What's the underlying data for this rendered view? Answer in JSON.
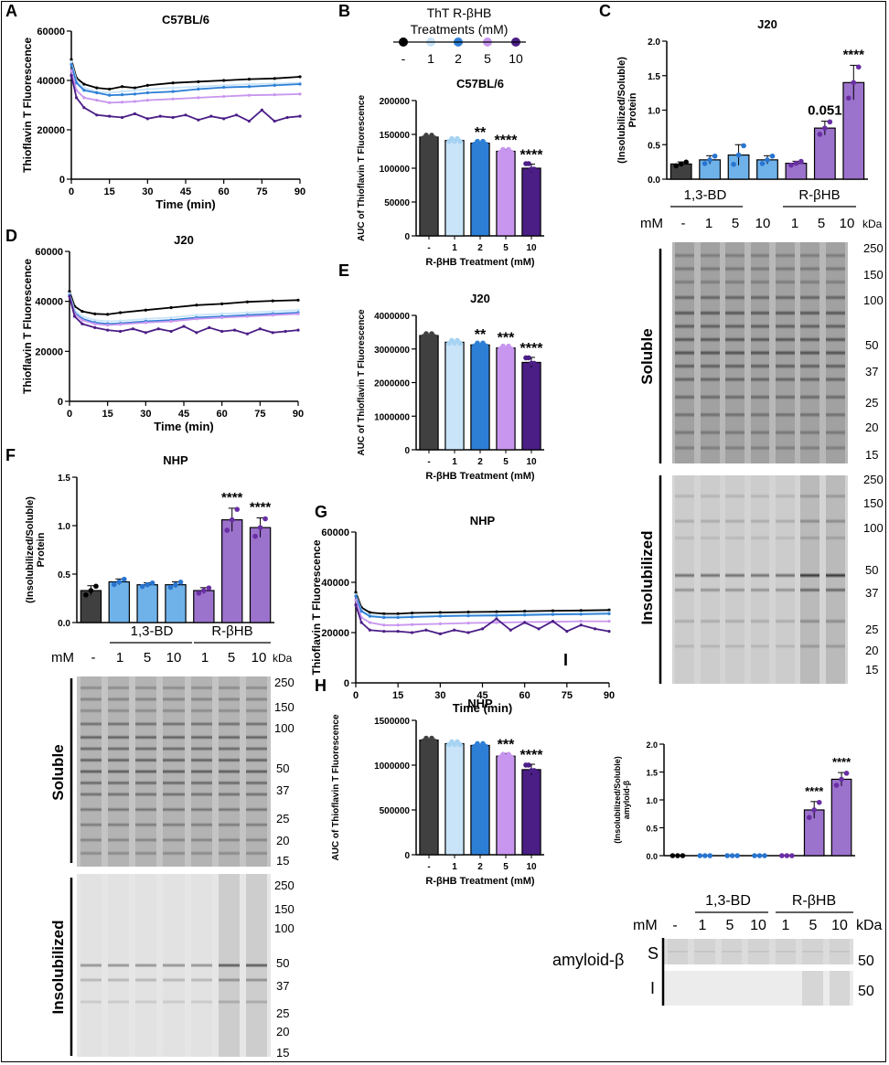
{
  "colors": {
    "ctrl": "#404040",
    "bd": "#6fb2ea",
    "r1": "#c9e4f8",
    "r2": "#2d7fd6",
    "r5": "#c896ee",
    "r10": "#4b1e86",
    "rhb_bar": "#9b72cc",
    "bd_dot": "#2874d0",
    "rhb_dot": "#6a2ea4"
  },
  "panels": [
    "A",
    "B",
    "C",
    "D",
    "E",
    "F",
    "G",
    "H",
    "I"
  ],
  "legend": {
    "title_line1": "ThT R-βHB",
    "title_line2": "Treatments (mM)",
    "labels": [
      "-",
      "1",
      "2",
      "5",
      "10"
    ]
  },
  "gel_common": {
    "mM": "mM",
    "kda": "kDa",
    "lanes": [
      "-",
      "1",
      "5",
      "10",
      "1",
      "5",
      "10"
    ],
    "group_bd": "1,3-BD",
    "group_rhb": "R-βHB",
    "soluble": "Soluble",
    "insolubilized": "Insolubilized",
    "markers_sol": [
      "250",
      "150",
      "100",
      "50",
      "37",
      "25",
      "20",
      "15"
    ],
    "markers_insol": [
      "250",
      "150",
      "100",
      "50",
      "37",
      "25",
      "20",
      "15"
    ]
  },
  "panel_I_blot": {
    "protein": "amyloid-β",
    "S": "S",
    "I": "I",
    "marker": "50"
  },
  "chart_data": [
    {
      "id": "A",
      "type": "line",
      "title": "C57BL/6",
      "xlabel": "Time (min)",
      "ylabel": "Thioflavin T Fluorescence",
      "xlim": [
        0,
        90
      ],
      "ylim": [
        0,
        60000
      ],
      "xticks": [
        "0",
        "15",
        "30",
        "45",
        "60",
        "75",
        "90"
      ],
      "yticks": [
        "0",
        "20000",
        "40000",
        "60000"
      ],
      "series": [
        {
          "name": "-",
          "x": [
            0,
            2,
            5,
            10,
            15,
            20,
            25,
            30,
            40,
            50,
            60,
            70,
            80,
            90
          ],
          "y": [
            48500,
            41000,
            38500,
            37000,
            36500,
            37500,
            37000,
            38000,
            39000,
            39500,
            40000,
            40500,
            40800,
            41500
          ]
        },
        {
          "name": "1",
          "x": [
            0,
            2,
            5,
            10,
            15,
            20,
            25,
            30,
            40,
            50,
            60,
            70,
            80,
            90
          ],
          "y": [
            47500,
            40000,
            37000,
            35500,
            35000,
            35500,
            36000,
            36500,
            37000,
            37500,
            38000,
            38500,
            38700,
            39000
          ]
        },
        {
          "name": "2",
          "x": [
            0,
            2,
            5,
            10,
            15,
            20,
            25,
            30,
            40,
            50,
            60,
            70,
            80,
            90
          ],
          "y": [
            46500,
            39000,
            36000,
            35000,
            34000,
            34200,
            34500,
            35000,
            35500,
            36500,
            37200,
            37500,
            38000,
            38500
          ]
        },
        {
          "name": "5",
          "x": [
            0,
            2,
            5,
            10,
            15,
            20,
            25,
            30,
            40,
            50,
            60,
            70,
            80,
            90
          ],
          "y": [
            44000,
            36000,
            33000,
            32000,
            31000,
            31200,
            31500,
            32000,
            32500,
            33000,
            33500,
            34000,
            34200,
            34500
          ]
        },
        {
          "name": "10",
          "x": [
            0,
            2,
            5,
            10,
            15,
            20,
            25,
            30,
            35,
            40,
            45,
            50,
            55,
            60,
            65,
            70,
            75,
            80,
            85,
            90
          ],
          "y": [
            42000,
            33000,
            29000,
            26000,
            25500,
            25000,
            26500,
            24500,
            25500,
            25000,
            26000,
            24000,
            25500,
            24500,
            26000,
            23500,
            28000,
            23500,
            25000,
            25500
          ]
        }
      ]
    },
    {
      "id": "B",
      "type": "bar",
      "title": "C57BL/6",
      "xlabel": "R-βHB Treatment (mM)",
      "ylabel": "AUC of Thioflavin T Fluorescence",
      "categories": [
        "-",
        "1",
        "2",
        "5",
        "10"
      ],
      "values": [
        146000,
        141000,
        137000,
        125000,
        100000
      ],
      "errors": [
        2000,
        1500,
        2000,
        2500,
        6000
      ],
      "significance": [
        "",
        "",
        "**",
        "****",
        "****"
      ],
      "ylim": [
        0,
        200000
      ],
      "yticks": [
        "0",
        "50000",
        "100000",
        "150000",
        "200000"
      ]
    },
    {
      "id": "C",
      "type": "bar",
      "title": "J20",
      "ylabel": "(Insolubilized/Soluble) Protein",
      "categories": [
        "-",
        "1",
        "5",
        "10",
        "1",
        "5",
        "10"
      ],
      "groups": [
        "",
        "1,3-BD",
        "1,3-BD",
        "1,3-BD",
        "R-βHB",
        "R-βHB",
        "R-βHB"
      ],
      "values": [
        0.22,
        0.28,
        0.35,
        0.28,
        0.23,
        0.74,
        1.4
      ],
      "errors": [
        0.03,
        0.06,
        0.15,
        0.06,
        0.03,
        0.1,
        0.25
      ],
      "significance": [
        "",
        "",
        "",
        "",
        "",
        "0.051",
        "****"
      ],
      "ylim": [
        0,
        2.0
      ],
      "yticks": [
        "0.0",
        "0.5",
        "1.0",
        "1.5",
        "2.0"
      ]
    },
    {
      "id": "D",
      "type": "line",
      "title": "J20",
      "xlabel": "Time (min)",
      "ylabel": "Thioflavin T Fluorescence",
      "xlim": [
        0,
        90
      ],
      "ylim": [
        0,
        60000
      ],
      "xticks": [
        "0",
        "15",
        "30",
        "45",
        "60",
        "75",
        "90"
      ],
      "yticks": [
        "0",
        "20000",
        "40000",
        "60000"
      ],
      "series": [
        {
          "name": "-",
          "x": [
            0,
            2,
            5,
            10,
            15,
            20,
            30,
            40,
            50,
            60,
            70,
            80,
            90
          ],
          "y": [
            44000,
            38000,
            36000,
            35000,
            34800,
            35500,
            36500,
            37500,
            38500,
            39000,
            39800,
            40200,
            40500
          ]
        },
        {
          "name": "1",
          "x": [
            0,
            2,
            5,
            10,
            15,
            20,
            30,
            40,
            50,
            60,
            70,
            80,
            90
          ],
          "y": [
            43000,
            36500,
            34000,
            32500,
            32000,
            32200,
            33000,
            33500,
            34500,
            35000,
            35500,
            36000,
            36500
          ]
        },
        {
          "name": "2",
          "x": [
            0,
            2,
            5,
            10,
            15,
            20,
            30,
            40,
            50,
            60,
            70,
            80,
            90
          ],
          "y": [
            42500,
            35500,
            33000,
            31500,
            31000,
            31200,
            32000,
            32500,
            33500,
            34000,
            34500,
            35000,
            35500
          ]
        },
        {
          "name": "5",
          "x": [
            0,
            2,
            5,
            10,
            15,
            20,
            30,
            40,
            50,
            60,
            70,
            80,
            90
          ],
          "y": [
            42000,
            35000,
            32500,
            31000,
            30500,
            30800,
            31500,
            32000,
            33000,
            33500,
            34000,
            34500,
            35000
          ]
        },
        {
          "name": "10",
          "x": [
            0,
            2,
            5,
            10,
            15,
            20,
            25,
            30,
            35,
            40,
            45,
            50,
            55,
            60,
            65,
            70,
            75,
            80,
            85,
            90
          ],
          "y": [
            42000,
            34000,
            31000,
            29500,
            28500,
            28000,
            29000,
            27500,
            29000,
            28000,
            30000,
            27500,
            29500,
            28000,
            28500,
            27000,
            29000,
            27500,
            28000,
            28500
          ]
        }
      ]
    },
    {
      "id": "E",
      "type": "bar",
      "title": "J20",
      "xlabel": "R-βHB Treatment (mM)",
      "ylabel": "AUC of Thioflavin T Fluorescence",
      "categories": [
        "-",
        "1",
        "2",
        "5",
        "10"
      ],
      "values": [
        3400000,
        3200000,
        3120000,
        3030000,
        2600000
      ],
      "errors": [
        30000,
        30000,
        40000,
        30000,
        150000
      ],
      "significance": [
        "",
        "",
        "**",
        "***",
        "****"
      ],
      "ylim": [
        0,
        4000000
      ],
      "yticks": [
        "0",
        "1000000",
        "2000000",
        "3000000",
        "4000000"
      ]
    },
    {
      "id": "F",
      "type": "bar",
      "title": "NHP",
      "ylabel": "(Insolubilized/Soluble) Protein",
      "categories": [
        "-",
        "1",
        "5",
        "10",
        "1",
        "5",
        "10"
      ],
      "groups": [
        "",
        "1,3-BD",
        "1,3-BD",
        "1,3-BD",
        "R-βHB",
        "R-βHB",
        "R-βHB"
      ],
      "values": [
        0.33,
        0.42,
        0.39,
        0.39,
        0.33,
        1.06,
        0.98
      ],
      "errors": [
        0.05,
        0.03,
        0.02,
        0.03,
        0.03,
        0.12,
        0.1
      ],
      "significance": [
        "",
        "",
        "",
        "",
        "",
        "****",
        "****"
      ],
      "ylim": [
        0,
        1.5
      ],
      "yticks": [
        "0.0",
        "0.5",
        "1.0",
        "1.5"
      ]
    },
    {
      "id": "G",
      "type": "line",
      "title": "NHP",
      "xlabel": "Time (min)",
      "ylabel": "Thioflavin T Fluorescence",
      "xlim": [
        0,
        90
      ],
      "ylim": [
        0,
        60000
      ],
      "xticks": [
        "0",
        "15",
        "30",
        "45",
        "60",
        "75",
        "90"
      ],
      "yticks": [
        "0",
        "20000",
        "40000",
        "60000"
      ],
      "series": [
        {
          "name": "-",
          "x": [
            0,
            2,
            5,
            10,
            15,
            20,
            30,
            40,
            50,
            60,
            70,
            80,
            90
          ],
          "y": [
            36000,
            30000,
            28000,
            27500,
            27500,
            27800,
            28000,
            28200,
            28300,
            28500,
            28700,
            28800,
            29000
          ]
        },
        {
          "name": "1",
          "x": [
            0,
            2,
            5,
            10,
            15,
            20,
            30,
            40,
            50,
            60,
            70,
            80,
            90
          ],
          "y": [
            35000,
            29000,
            27000,
            26500,
            26500,
            26700,
            27000,
            27100,
            27300,
            27500,
            27600,
            27800,
            28000
          ]
        },
        {
          "name": "2",
          "x": [
            0,
            2,
            5,
            10,
            15,
            20,
            30,
            40,
            50,
            60,
            70,
            80,
            90
          ],
          "y": [
            34500,
            28500,
            26500,
            26000,
            26000,
            26200,
            26500,
            26700,
            26800,
            27000,
            27200,
            27300,
            27500
          ]
        },
        {
          "name": "5",
          "x": [
            0,
            2,
            5,
            10,
            15,
            20,
            30,
            40,
            50,
            60,
            70,
            80,
            90
          ],
          "y": [
            33000,
            26000,
            24000,
            23000,
            23000,
            23200,
            23500,
            23800,
            24000,
            24200,
            24300,
            24500,
            24500
          ]
        },
        {
          "name": "10",
          "x": [
            0,
            2,
            5,
            10,
            15,
            20,
            25,
            30,
            35,
            40,
            45,
            50,
            55,
            60,
            65,
            70,
            75,
            80,
            85,
            90
          ],
          "y": [
            31000,
            24000,
            21000,
            20500,
            20500,
            20000,
            21000,
            19500,
            21000,
            20000,
            21500,
            25500,
            21000,
            24000,
            21500,
            24500,
            20500,
            23000,
            21500,
            20500
          ]
        }
      ]
    },
    {
      "id": "H",
      "type": "bar",
      "title": "NHP",
      "xlabel": "R-βHB Treatment (mM)",
      "ylabel": "AUC of Thioflavin T Fluorescence",
      "categories": [
        "-",
        "1",
        "2",
        "5",
        "10"
      ],
      "values": [
        1280000,
        1240000,
        1220000,
        1100000,
        950000
      ],
      "errors": [
        10000,
        10000,
        10000,
        30000,
        60000
      ],
      "significance": [
        "",
        "",
        "",
        "***",
        "****"
      ],
      "ylim": [
        0,
        1500000
      ],
      "yticks": [
        "0",
        "500000",
        "1000000",
        "1500000"
      ]
    },
    {
      "id": "I",
      "type": "bar",
      "ylabel": "(Insolubilized/Soluble) amyloid-β",
      "categories": [
        "-",
        "1",
        "5",
        "10",
        "1",
        "5",
        "10"
      ],
      "groups": [
        "",
        "1,3-BD",
        "1,3-BD",
        "1,3-BD",
        "R-βHB",
        "R-βHB",
        "R-βHB"
      ],
      "values": [
        0.0,
        0.0,
        0.0,
        0.0,
        0.0,
        0.82,
        1.37
      ],
      "errors": [
        0.0,
        0.0,
        0.0,
        0.0,
        0.0,
        0.15,
        0.12
      ],
      "significance": [
        "",
        "",
        "",
        "",
        "",
        "****",
        "****"
      ],
      "ylim": [
        0,
        2.0
      ],
      "yticks": [
        "0.0",
        "0.5",
        "1.0",
        "1.5",
        "2.0"
      ]
    }
  ]
}
